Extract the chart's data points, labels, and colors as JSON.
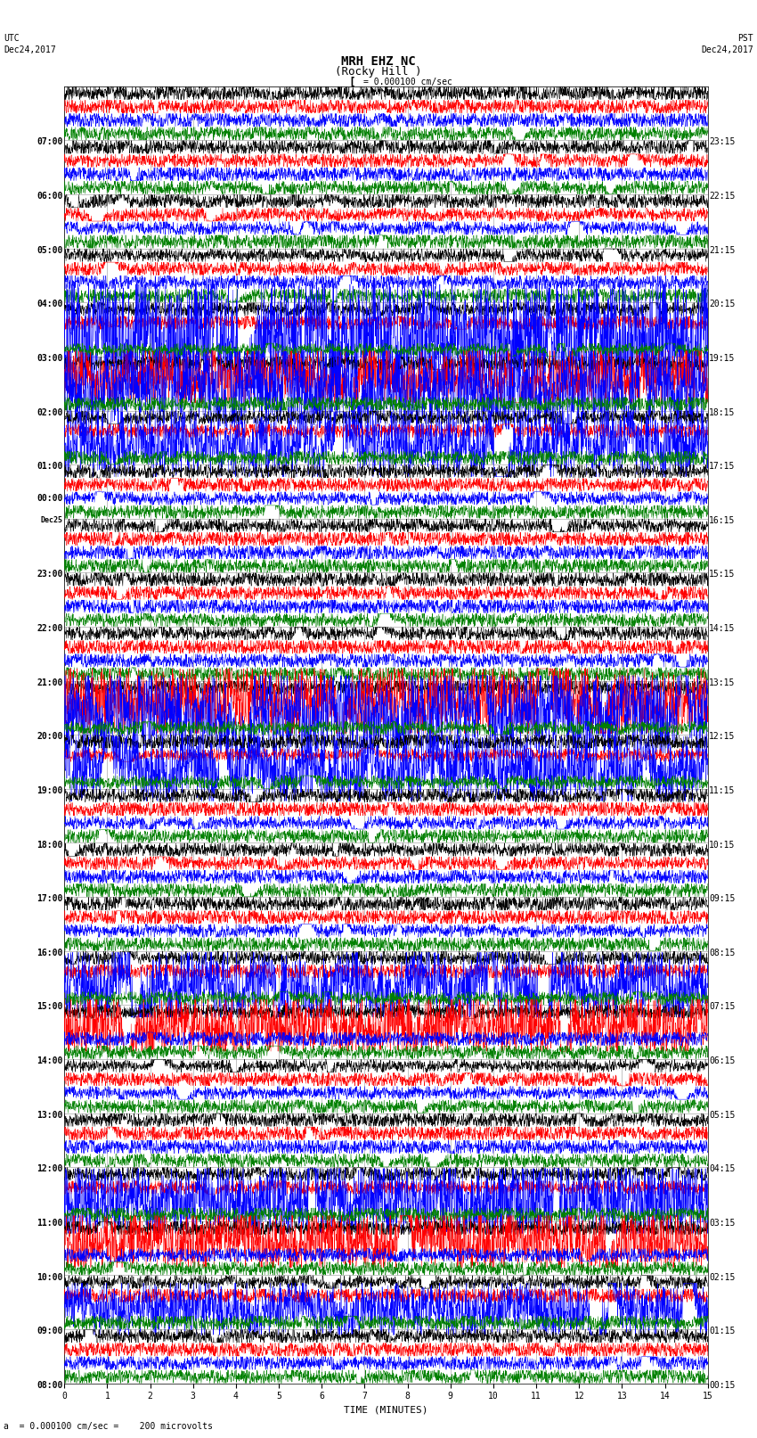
{
  "title_line1": "MRH EHZ NC",
  "title_line2": "(Rocky Hill )",
  "scale_label": "= 0.000100 cm/sec",
  "bottom_label": "a  = 0.000100 cm/sec =    200 microvolts",
  "xlabel": "TIME (MINUTES)",
  "utc_label": "UTC\nDec24,2017",
  "pst_label": "PST\nDec24,2017",
  "left_times": [
    "08:00",
    "09:00",
    "10:00",
    "11:00",
    "12:00",
    "13:00",
    "14:00",
    "15:00",
    "16:00",
    "17:00",
    "18:00",
    "19:00",
    "20:00",
    "21:00",
    "22:00",
    "23:00",
    "Dec25\n00:00",
    "01:00",
    "02:00",
    "03:00",
    "04:00",
    "05:00",
    "06:00",
    "07:00"
  ],
  "right_times": [
    "00:15",
    "01:15",
    "02:15",
    "03:15",
    "04:15",
    "05:15",
    "06:15",
    "07:15",
    "08:15",
    "09:15",
    "10:15",
    "11:15",
    "12:15",
    "13:15",
    "14:15",
    "15:15",
    "16:15",
    "17:15",
    "18:15",
    "19:15",
    "20:15",
    "21:15",
    "22:15",
    "23:15"
  ],
  "num_rows": 24,
  "colors": [
    "black",
    "red",
    "blue",
    "green"
  ],
  "bg_color": "white",
  "fig_width": 8.5,
  "fig_height": 16.13,
  "dpi": 100,
  "time_minutes": 15,
  "samples_per_trace": 2700,
  "grid_color": "#888888",
  "xticks": [
    0,
    1,
    2,
    3,
    4,
    5,
    6,
    7,
    8,
    9,
    10,
    11,
    12,
    13,
    14,
    15
  ],
  "title_fontsize": 10,
  "tick_fontsize": 7,
  "time_label_fontsize": 7
}
